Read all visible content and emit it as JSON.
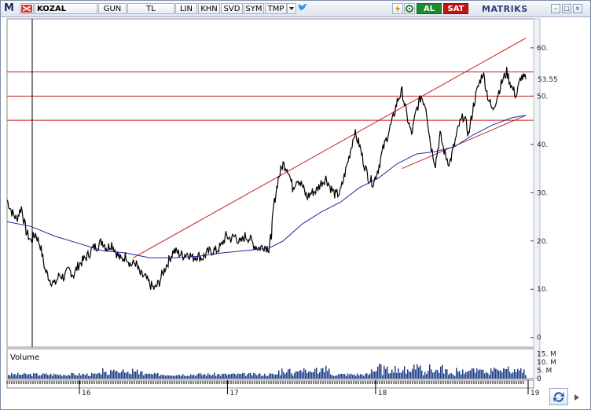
{
  "toolbar": {
    "logo": "M",
    "symbol": "KOZAL",
    "period": "GUN",
    "currency": "TL",
    "scale": "LIN",
    "buttons": [
      "KHN",
      "SVD",
      "SYM",
      "TMP"
    ],
    "buy": "AL",
    "sell": "SAT",
    "brand": "MATRIKS"
  },
  "chart_data": {
    "type": "line",
    "title": "",
    "ylim": [
      -2,
      66
    ],
    "y_ticks": [
      0,
      10,
      20,
      30,
      40,
      50,
      60
    ],
    "y_tick_labels": [
      "0",
      "10.",
      "20.",
      "30.",
      "40.",
      "50.",
      "60."
    ],
    "last_price_label": "53.55",
    "x_labels": [
      "16",
      "17",
      "18",
      "19"
    ],
    "x_label_fractions": [
      0.0,
      0.33,
      0.66,
      1.0
    ],
    "horizontal_levels": [
      55.0,
      50.0,
      45.0
    ],
    "trend_channel": {
      "upper": [
        [
          0.265,
          16.5
        ],
        [
          1.0,
          62.0
        ]
      ],
      "lower": [
        [
          0.83,
          35.0
        ],
        [
          1.0,
          46.0
        ]
      ]
    },
    "series": [
      {
        "name": "price",
        "points": [
          [
            0.0,
            28.5
          ],
          [
            0.01,
            26
          ],
          [
            0.02,
            24.5
          ],
          [
            0.03,
            27
          ],
          [
            0.04,
            22
          ],
          [
            0.05,
            20
          ],
          [
            0.06,
            21.5
          ],
          [
            0.07,
            19
          ],
          [
            0.08,
            14
          ],
          [
            0.09,
            12
          ],
          [
            0.1,
            11
          ],
          [
            0.11,
            13
          ],
          [
            0.12,
            12.5
          ],
          [
            0.13,
            14
          ],
          [
            0.14,
            13
          ],
          [
            0.15,
            15
          ],
          [
            0.16,
            16
          ],
          [
            0.17,
            17
          ],
          [
            0.18,
            18.5
          ],
          [
            0.19,
            19
          ],
          [
            0.2,
            20
          ],
          [
            0.21,
            18.5
          ],
          [
            0.22,
            19.5
          ],
          [
            0.23,
            17.5
          ],
          [
            0.24,
            16
          ],
          [
            0.25,
            17
          ],
          [
            0.26,
            15
          ],
          [
            0.27,
            15.5
          ],
          [
            0.28,
            13
          ],
          [
            0.29,
            12.5
          ],
          [
            0.3,
            11
          ],
          [
            0.31,
            10
          ],
          [
            0.32,
            11.5
          ],
          [
            0.33,
            14
          ],
          [
            0.34,
            16
          ],
          [
            0.35,
            18
          ],
          [
            0.36,
            17.5
          ],
          [
            0.37,
            17
          ],
          [
            0.38,
            17.5
          ],
          [
            0.39,
            16.5
          ],
          [
            0.4,
            17
          ],
          [
            0.41,
            16.5
          ],
          [
            0.42,
            17.5
          ],
          [
            0.43,
            18
          ],
          [
            0.44,
            18
          ],
          [
            0.45,
            19
          ],
          [
            0.46,
            21
          ],
          [
            0.47,
            20.5
          ],
          [
            0.48,
            21
          ],
          [
            0.49,
            19.5
          ],
          [
            0.5,
            21
          ],
          [
            0.51,
            20.5
          ],
          [
            0.52,
            19
          ],
          [
            0.53,
            18.5
          ],
          [
            0.54,
            19
          ],
          [
            0.55,
            18.5
          ],
          [
            0.555,
            21
          ],
          [
            0.56,
            27
          ],
          [
            0.57,
            33
          ],
          [
            0.58,
            36
          ],
          [
            0.59,
            35
          ],
          [
            0.6,
            31
          ],
          [
            0.61,
            33
          ],
          [
            0.62,
            31.5
          ],
          [
            0.63,
            29
          ],
          [
            0.64,
            30
          ],
          [
            0.65,
            30.5
          ],
          [
            0.66,
            32
          ],
          [
            0.67,
            33
          ],
          [
            0.68,
            31
          ],
          [
            0.69,
            29.5
          ],
          [
            0.7,
            30
          ],
          [
            0.71,
            34
          ],
          [
            0.72,
            38
          ],
          [
            0.73,
            42.5
          ],
          [
            0.74,
            40
          ],
          [
            0.75,
            36
          ],
          [
            0.76,
            33
          ],
          [
            0.77,
            32
          ],
          [
            0.78,
            35
          ],
          [
            0.79,
            39
          ],
          [
            0.8,
            42
          ],
          [
            0.81,
            45
          ],
          [
            0.82,
            49
          ],
          [
            0.83,
            51
          ],
          [
            0.84,
            46
          ],
          [
            0.85,
            42
          ],
          [
            0.86,
            47
          ],
          [
            0.87,
            50
          ],
          [
            0.88,
            48
          ],
          [
            0.89,
            40
          ],
          [
            0.9,
            36
          ],
          [
            0.91,
            42
          ],
          [
            0.92,
            38
          ],
          [
            0.93,
            36
          ],
          [
            0.94,
            40
          ],
          [
            0.95,
            44
          ],
          [
            0.96,
            46
          ],
          [
            0.97,
            42
          ],
          [
            0.98,
            48
          ],
          [
            0.99,
            52
          ],
          [
            1.0,
            55
          ],
          [
            1.01,
            50
          ],
          [
            1.02,
            47
          ],
          [
            1.03,
            50
          ],
          [
            1.04,
            53
          ],
          [
            1.05,
            55
          ],
          [
            1.06,
            52
          ],
          [
            1.07,
            50
          ],
          [
            1.08,
            54
          ],
          [
            1.09,
            53.5
          ]
        ]
      },
      {
        "name": "moving-average",
        "points": [
          [
            0.0,
            24
          ],
          [
            0.05,
            23
          ],
          [
            0.1,
            21
          ],
          [
            0.15,
            19.5
          ],
          [
            0.2,
            18
          ],
          [
            0.25,
            17.5
          ],
          [
            0.3,
            16.5
          ],
          [
            0.35,
            16.5
          ],
          [
            0.4,
            16.8
          ],
          [
            0.45,
            17.5
          ],
          [
            0.5,
            18
          ],
          [
            0.55,
            18.5
          ],
          [
            0.58,
            20
          ],
          [
            0.62,
            23.5
          ],
          [
            0.66,
            26
          ],
          [
            0.7,
            28
          ],
          [
            0.74,
            31
          ],
          [
            0.78,
            33
          ],
          [
            0.82,
            36
          ],
          [
            0.86,
            38
          ],
          [
            0.9,
            38.5
          ],
          [
            0.94,
            39.5
          ],
          [
            0.98,
            42
          ],
          [
            1.02,
            44
          ],
          [
            1.06,
            45.5
          ],
          [
            1.09,
            46
          ]
        ]
      }
    ],
    "volume": {
      "label": "Volume",
      "tick_labels": [
        "15. M",
        "10. M",
        "5. M",
        "0"
      ],
      "ylim": [
        0,
        18
      ]
    }
  }
}
